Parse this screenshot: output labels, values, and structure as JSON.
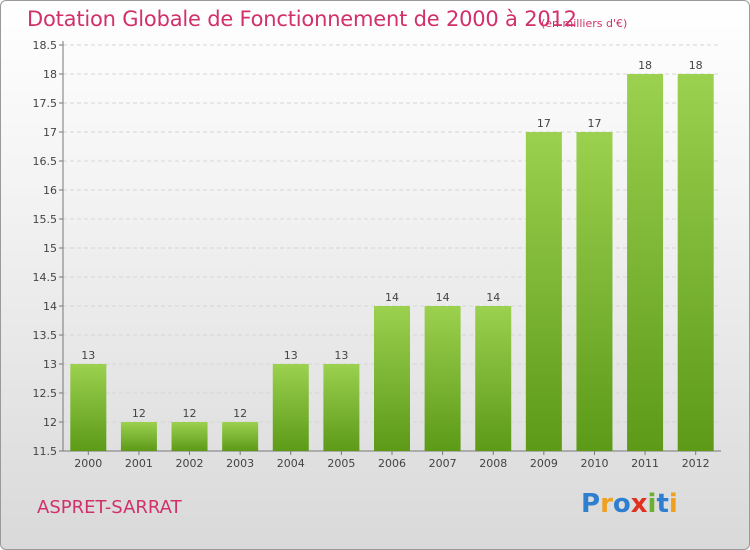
{
  "title": "Dotation Globale de Fonctionnement de 2000 à 2012",
  "unit": "(en milliers d'€)",
  "commune": "ASPRET-SARRAT",
  "logo": {
    "text": "Proxiti",
    "letters": [
      {
        "ch": "P",
        "color": "#2f7fd1"
      },
      {
        "ch": "r",
        "color": "#f0a020"
      },
      {
        "ch": "o",
        "color": "#2f7fd1"
      },
      {
        "ch": "x",
        "color": "#e03020"
      },
      {
        "ch": "i",
        "color": "#6bb02f"
      },
      {
        "ch": "t",
        "color": "#2f7fd1"
      },
      {
        "ch": "i",
        "color": "#f0a020"
      }
    ]
  },
  "colors": {
    "accent": "#d1306a",
    "bar_top": "#9bd14f",
    "bar_bottom": "#5c9a18"
  },
  "chart_data": {
    "type": "bar",
    "categories": [
      "2000",
      "2001",
      "2002",
      "2003",
      "2004",
      "2005",
      "2006",
      "2007",
      "2008",
      "2009",
      "2010",
      "2011",
      "2012"
    ],
    "values": [
      13,
      12,
      12,
      12,
      13,
      13,
      14,
      14,
      14,
      17,
      17,
      18,
      18
    ],
    "data_labels": [
      "13",
      "12",
      "12",
      "12",
      "13",
      "13",
      "14",
      "14",
      "14",
      "17",
      "17",
      "18",
      "18"
    ],
    "ylim": [
      11.5,
      18.5
    ],
    "yticks": [
      11.5,
      12,
      12.5,
      13,
      13.5,
      14,
      14.5,
      15,
      15.5,
      16,
      16.5,
      17,
      17.5,
      18,
      18.5
    ],
    "grid": true
  }
}
